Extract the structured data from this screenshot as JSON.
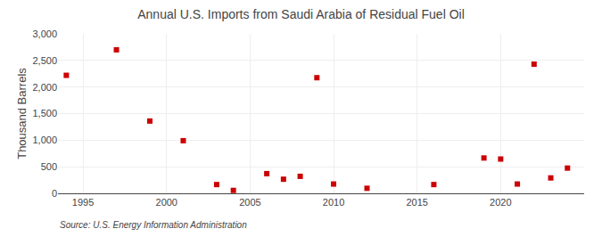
{
  "chart_data": {
    "type": "scatter",
    "title": "Annual U.S. Imports from Saudi Arabia of Residual Fuel Oil",
    "ylabel": "Thousand Barrels",
    "annotations": [
      "Source: U.S. Energy Information Administration"
    ],
    "x": [
      1994,
      1997,
      1999,
      2001,
      2003,
      2004,
      2006,
      2007,
      2008,
      2009,
      2010,
      2012,
      2016,
      2019,
      2020,
      2021,
      2022,
      2023,
      2024
    ],
    "values": [
      2220,
      2700,
      1360,
      990,
      165,
      55,
      370,
      265,
      320,
      2175,
      175,
      95,
      165,
      665,
      645,
      175,
      2430,
      290,
      475
    ],
    "color": "#cc0000",
    "marker": "square",
    "xlim": [
      1993.5,
      2025
    ],
    "ylim": [
      0,
      3000
    ],
    "xticks": [
      1995,
      2000,
      2005,
      2010,
      2015,
      2020
    ],
    "yticks": [
      0,
      500,
      {
        "value": 1000,
        "label": "1,000"
      },
      {
        "value": 1500,
        "label": "1,500"
      },
      {
        "value": 2000,
        "label": "2,000"
      },
      {
        "value": 2500,
        "label": "2,500"
      },
      {
        "value": 3000,
        "label": "3,000"
      }
    ],
    "grid": true
  }
}
